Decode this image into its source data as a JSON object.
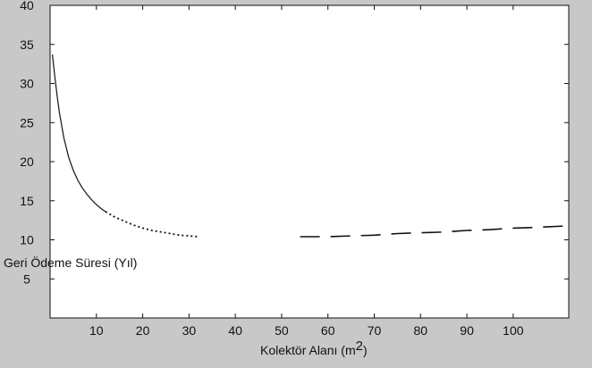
{
  "chart_data": {
    "type": "line",
    "title": "",
    "xlabel_main": "Kolektör Alanı (m",
    "xlabel_sup": "2",
    "xlabel_close": ")",
    "ylabel": "Geri Ödeme Süresi (Yıl)",
    "xlim": [
      0,
      112
    ],
    "ylim": [
      0,
      40
    ],
    "xticks": [
      10,
      20,
      30,
      40,
      50,
      60,
      70,
      80,
      90,
      100
    ],
    "yticks": [
      5,
      10,
      15,
      20,
      25,
      30,
      35,
      40
    ],
    "grid": false,
    "series": [
      {
        "style": "solid",
        "x": [
          0.5,
          1,
          1.5,
          2,
          3,
          4,
          5,
          6,
          7,
          8,
          9,
          10,
          11,
          12
        ],
        "y": [
          33.7,
          31.0,
          28.5,
          26.3,
          23.0,
          20.6,
          18.9,
          17.6,
          16.6,
          15.8,
          15.1,
          14.5,
          14.0,
          13.6
        ]
      },
      {
        "style": "dotted",
        "x": [
          12,
          14,
          16,
          18,
          20,
          22,
          24,
          26,
          28,
          30,
          32
        ],
        "y": [
          13.6,
          12.9,
          12.4,
          11.9,
          11.5,
          11.2,
          11.0,
          10.8,
          10.6,
          10.5,
          10.4
        ]
      },
      {
        "style": "dashed",
        "x": [
          54,
          60,
          65,
          70,
          75,
          80,
          85,
          90,
          95,
          100,
          105,
          112
        ],
        "y": [
          10.4,
          10.4,
          10.5,
          10.6,
          10.8,
          10.9,
          11.0,
          11.2,
          11.3,
          11.5,
          11.6,
          11.8
        ]
      }
    ],
    "colors": {
      "background": "#c8c8c8",
      "plot_area": "#ffffff",
      "line": "#111111"
    }
  }
}
